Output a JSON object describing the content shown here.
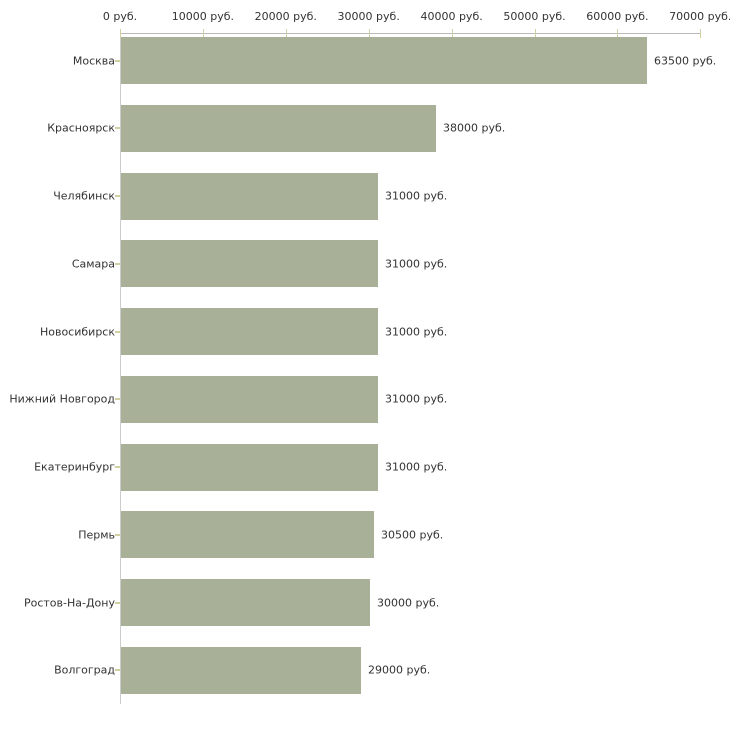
{
  "chart_data": {
    "type": "bar",
    "orientation": "horizontal",
    "title": "",
    "xlabel": "",
    "ylabel": "",
    "grid": false,
    "legend": null,
    "xlim": [
      0,
      70000
    ],
    "x_ticks": [
      {
        "value": 0,
        "label": "0 руб."
      },
      {
        "value": 10000,
        "label": "10000 руб."
      },
      {
        "value": 20000,
        "label": "20000 руб."
      },
      {
        "value": 30000,
        "label": "30000 руб."
      },
      {
        "value": 40000,
        "label": "40000 руб."
      },
      {
        "value": 50000,
        "label": "50000 руб."
      },
      {
        "value": 60000,
        "label": "60000 руб."
      },
      {
        "value": 70000,
        "label": "70000 руб."
      }
    ],
    "categories": [
      "Москва",
      "Красноярск",
      "Челябинск",
      "Самара",
      "Новосибирск",
      "Нижний Новгород",
      "Екатеринбург",
      "Пермь",
      "Ростов-На-Дону",
      "Волгоград"
    ],
    "values": [
      63500,
      38000,
      31000,
      31000,
      31000,
      31000,
      31000,
      30500,
      30000,
      29000
    ],
    "value_labels": [
      "63500 руб.",
      "38000 руб.",
      "31000 руб.",
      "31000 руб.",
      "31000 руб.",
      "31000 руб.",
      "31000 руб.",
      "30500 руб.",
      "30000 руб.",
      "29000 руб."
    ],
    "unit": "руб.",
    "colors": {
      "bar": "#a9b098",
      "x_axis_line": "#b9b9b9",
      "y_axis_line": "#cccccc",
      "tick": "#d0d0a2",
      "text": "#333333",
      "background": "#ffffff"
    }
  }
}
